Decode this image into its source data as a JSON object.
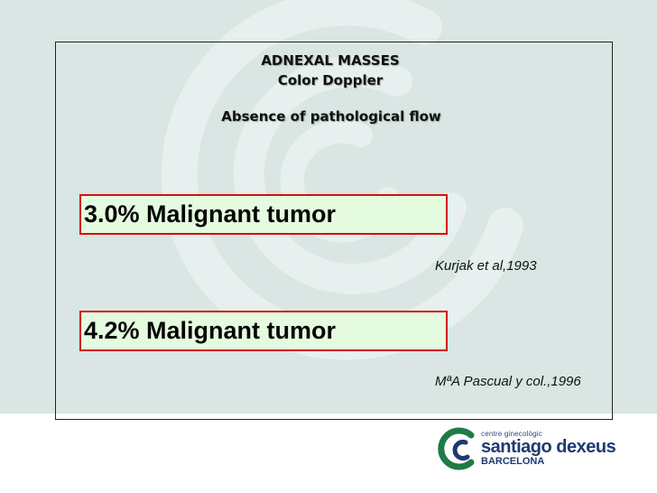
{
  "slide": {
    "title": "ADNEXAL MASSES",
    "subtitle": "Color Doppler",
    "heading": "Absence of pathological flow"
  },
  "findings": [
    {
      "stat": "3.0% Malignant tumor",
      "citation": "Kurjak et al,1993"
    },
    {
      "stat": "4.2% Malignant tumor",
      "citation": "MªA Pascual y col.,1996"
    }
  ],
  "logo": {
    "line1": "centre ginecològic",
    "line2": "santiago dexeus",
    "line3": "BARCELONA"
  },
  "colors": {
    "background": "#d9e6e3",
    "box_fill": "#e4fbdf",
    "box_border": "#d4100f",
    "logo_green": "#1f7a4a",
    "logo_blue": "#1e3a73"
  }
}
